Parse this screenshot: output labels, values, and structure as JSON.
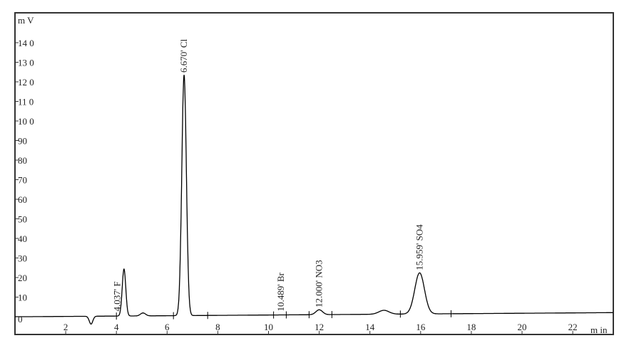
{
  "chart_data": {
    "type": "line",
    "title": "",
    "xlabel": "m in",
    "ylabel": "m V",
    "xlim": [
      0,
      23.6
    ],
    "ylim": [
      -5,
      153
    ],
    "x_ticks": [
      2,
      4,
      6,
      8,
      10,
      12,
      14,
      16,
      18,
      20,
      22
    ],
    "y_ticks": [
      0,
      10,
      20,
      30,
      40,
      50,
      60,
      70,
      80,
      90,
      100,
      110,
      120,
      130,
      140
    ],
    "y_tick_labels": [
      "0",
      "10",
      "20",
      "30",
      "40",
      "50",
      "60",
      "70",
      "80",
      "90",
      "10 0",
      "11 0",
      "12 0",
      "13 0",
      "14 0"
    ],
    "grid": false,
    "line_color": "#000000",
    "peaks": [
      {
        "rt": 3.0,
        "height": -4,
        "width": 0.07
      },
      {
        "rt": 4.3,
        "height": 24,
        "width": 0.07
      },
      {
        "rt": 5.05,
        "height": 1.5,
        "width": 0.1
      },
      {
        "rt": 6.67,
        "height": 123,
        "width": 0.09
      },
      {
        "rt": 12.0,
        "height": 2.5,
        "width": 0.13
      },
      {
        "rt": 14.55,
        "height": 2,
        "width": 0.2
      },
      {
        "rt": 15.96,
        "height": 21,
        "width": 0.19
      }
    ],
    "annotations": [
      {
        "x": 4.037,
        "y": 2,
        "label": "4.037' F"
      },
      {
        "x": 6.67,
        "y": 124,
        "label": "6.670' Cl"
      },
      {
        "x": 10.489,
        "y": 2,
        "label": "10.489' Br"
      },
      {
        "x": 12.0,
        "y": 4,
        "label": "12.000' NO3"
      },
      {
        "x": 15.959,
        "y": 23,
        "label": "15.959' SO4"
      }
    ],
    "integration_marks": [
      4.0,
      6.25,
      7.6,
      10.2,
      10.7,
      11.6,
      12.5,
      15.2,
      17.2
    ]
  }
}
